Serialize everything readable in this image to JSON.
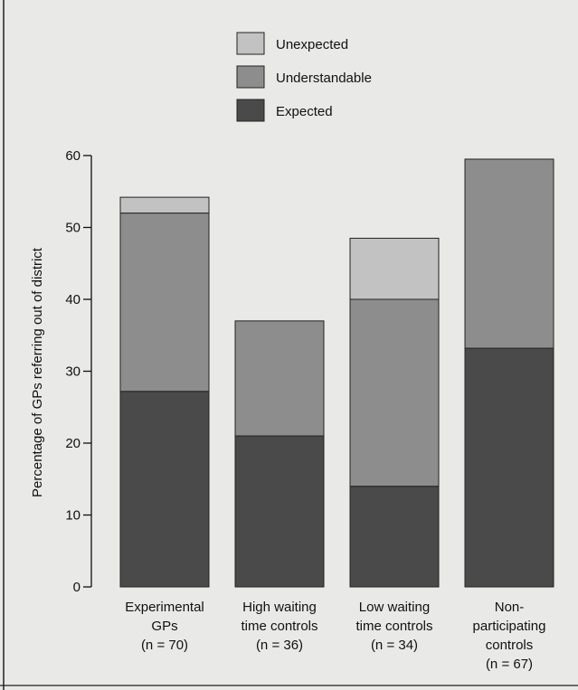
{
  "chart_data": {
    "type": "bar",
    "stacked": true,
    "ylabel": "Percentage of GPs referring out of district",
    "ylim": [
      0,
      60
    ],
    "yticks": [
      0,
      10,
      20,
      30,
      40,
      50,
      60
    ],
    "categories": [
      {
        "lines": [
          "Experimental",
          "GPs",
          "(n = 70)"
        ]
      },
      {
        "lines": [
          "High waiting",
          "time controls",
          "(n = 36)"
        ]
      },
      {
        "lines": [
          "Low waiting",
          "time controls",
          "(n = 34)"
        ]
      },
      {
        "lines": [
          "Non-",
          "participating",
          "controls",
          "(n = 67)"
        ]
      }
    ],
    "series": [
      {
        "name": "Expected",
        "color": "#4a4a4a",
        "values": [
          27.2,
          21.0,
          14.0,
          33.2
        ]
      },
      {
        "name": "Understandable",
        "color": "#8d8d8d",
        "values": [
          24.8,
          16.0,
          26.0,
          26.3
        ]
      },
      {
        "name": "Unexpected",
        "color": "#c2c2c2",
        "values": [
          2.2,
          0,
          8.5,
          0
        ]
      }
    ],
    "legend": {
      "position": "top",
      "order": [
        "Unexpected",
        "Understandable",
        "Expected"
      ]
    }
  }
}
